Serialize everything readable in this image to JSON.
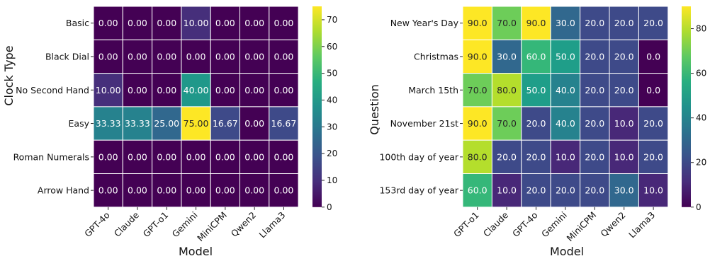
{
  "chart_data": [
    {
      "type": "heatmap",
      "xlabel": "Model",
      "ylabel": "Clock Type",
      "x_categories": [
        "GPT-4o",
        "Claude",
        "GPT-o1",
        "Gemini",
        "MiniCPM",
        "Qwen2",
        "Llama3"
      ],
      "y_categories": [
        "Basic",
        "Black Dial",
        "No Second Hand",
        "Easy",
        "Roman Numerals",
        "Arrow Hand"
      ],
      "values": [
        [
          0.0,
          0.0,
          0.0,
          10.0,
          0.0,
          0.0,
          0.0
        ],
        [
          0.0,
          0.0,
          0.0,
          0.0,
          0.0,
          0.0,
          0.0
        ],
        [
          10.0,
          0.0,
          0.0,
          40.0,
          0.0,
          0.0,
          0.0
        ],
        [
          33.33,
          33.33,
          25.0,
          75.0,
          16.67,
          0.0,
          16.67
        ],
        [
          0.0,
          0.0,
          0.0,
          0.0,
          0.0,
          0.0,
          0.0
        ],
        [
          0.0,
          0.0,
          0.0,
          0.0,
          0.0,
          0.0,
          0.0
        ]
      ],
      "decimals": 2,
      "colorbar": {
        "min": 0,
        "max": 75,
        "ticks": [
          0,
          10,
          20,
          30,
          40,
          50,
          60,
          70
        ]
      },
      "colormap": "viridis"
    },
    {
      "type": "heatmap",
      "xlabel": "Model",
      "ylabel": "Question",
      "x_categories": [
        "GPT-o1",
        "Claude",
        "GPT-4o",
        "Gemini",
        "MiniCPM",
        "Qwen2",
        "Llama3"
      ],
      "y_categories": [
        "New Year's Day",
        "Christmas",
        "March 15th",
        "November 21st",
        "100th day of year",
        "153rd day of year"
      ],
      "values": [
        [
          90.0,
          70.0,
          90.0,
          30.0,
          20.0,
          20.0,
          20.0
        ],
        [
          90.0,
          30.0,
          60.0,
          50.0,
          20.0,
          20.0,
          0.0
        ],
        [
          70.0,
          80.0,
          50.0,
          40.0,
          20.0,
          20.0,
          0.0
        ],
        [
          90.0,
          70.0,
          20.0,
          40.0,
          20.0,
          10.0,
          20.0
        ],
        [
          80.0,
          20.0,
          20.0,
          10.0,
          20.0,
          10.0,
          20.0
        ],
        [
          60.0,
          10.0,
          20.0,
          20.0,
          20.0,
          30.0,
          10.0
        ]
      ],
      "decimals": 1,
      "colorbar": {
        "min": 0,
        "max": 90,
        "ticks": [
          0,
          20,
          40,
          60,
          80
        ]
      },
      "colormap": "viridis"
    }
  ]
}
